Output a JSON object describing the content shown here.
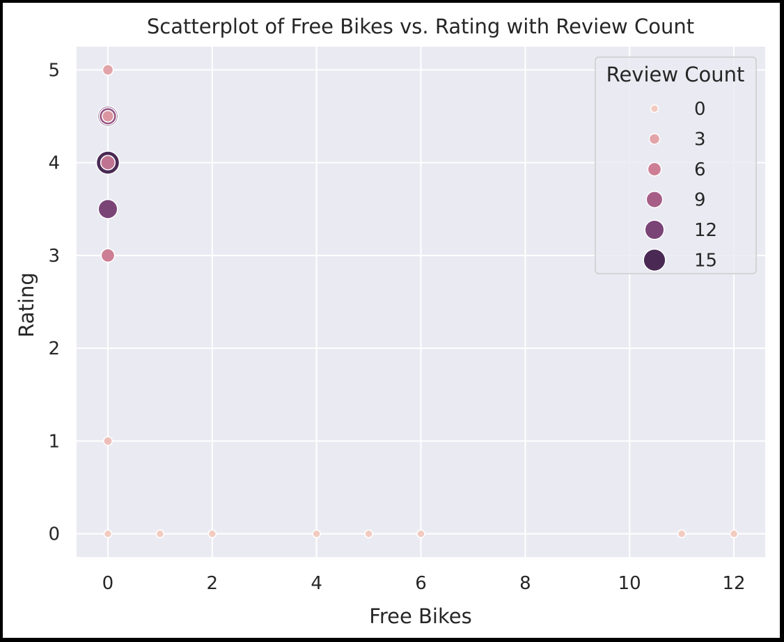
{
  "chart_data": {
    "type": "scatter",
    "title": "Scatterplot of Free Bikes vs. Rating with Review Count",
    "xlabel": "Free Bikes",
    "ylabel": "Rating",
    "xlim": [
      -0.6,
      12.6
    ],
    "ylim": [
      -0.25,
      5.25
    ],
    "x_ticks": [
      0,
      2,
      4,
      6,
      8,
      10,
      12
    ],
    "y_ticks": [
      0,
      1,
      2,
      3,
      4,
      5
    ],
    "grid": true,
    "background": "#EAEAF2",
    "legend": {
      "title": "Review Count",
      "placement": "top-right",
      "entries": [
        {
          "label": "0",
          "value": 0
        },
        {
          "label": "3",
          "value": 3
        },
        {
          "label": "6",
          "value": 6
        },
        {
          "label": "9",
          "value": 9
        },
        {
          "label": "12",
          "value": 12
        },
        {
          "label": "15",
          "value": 15
        }
      ]
    },
    "hue_colors": [
      "#F2CBC0",
      "#E2A4A8",
      "#CD7E94",
      "#A65E87",
      "#7A4477",
      "#4A2A54"
    ],
    "points": [
      {
        "x": 0,
        "y": 4.0,
        "review_count": 16
      },
      {
        "x": 0,
        "y": 4.5,
        "review_count": 13
      },
      {
        "x": 0,
        "y": 3.5,
        "review_count": 12
      },
      {
        "x": 0,
        "y": 4.5,
        "review_count": 10
      },
      {
        "x": 0,
        "y": 4.0,
        "review_count": 7
      },
      {
        "x": 0,
        "y": 3.0,
        "review_count": 6
      },
      {
        "x": 0,
        "y": 4.5,
        "review_count": 4
      },
      {
        "x": 0,
        "y": 5.0,
        "review_count": 3
      },
      {
        "x": 0,
        "y": 1.0,
        "review_count": 1
      },
      {
        "x": 0,
        "y": 0,
        "review_count": 0
      },
      {
        "x": 1,
        "y": 0,
        "review_count": 0
      },
      {
        "x": 2,
        "y": 0,
        "review_count": 0
      },
      {
        "x": 4,
        "y": 0,
        "review_count": 0
      },
      {
        "x": 5,
        "y": 0,
        "review_count": 0
      },
      {
        "x": 6,
        "y": 0,
        "review_count": 0
      },
      {
        "x": 11,
        "y": 0,
        "review_count": 0
      },
      {
        "x": 12,
        "y": 0,
        "review_count": 0
      }
    ]
  }
}
